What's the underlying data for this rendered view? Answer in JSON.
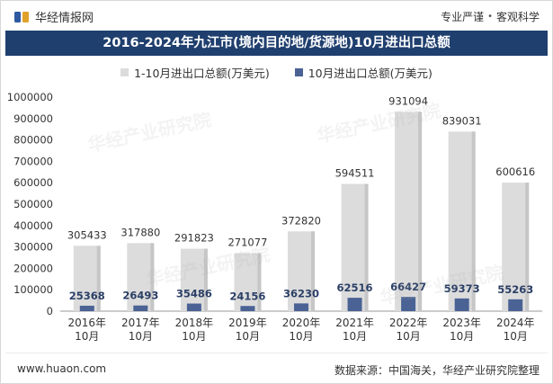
{
  "header": {
    "brand": "华经情报网",
    "slogan_left": "专业严谨",
    "slogan_sep": "•",
    "slogan_right": "客观科学",
    "title": "2016-2024年九江市(境内目的地/货源地)10月进出口总额"
  },
  "legend": {
    "series1_label": "1-10月进出口总额(万美元)",
    "series2_label": "10月进出口总额(万美元)"
  },
  "watermark": "华经产业研究院",
  "footer": {
    "site": "www.huaon.com",
    "source": "数据来源：中国海关，华经产业研究院整理"
  },
  "colors": {
    "banner": "#1f3f6e",
    "series1": "#dcdcdc",
    "series1_edge": "#c6c6c6",
    "series2": "#4a6294"
  },
  "chart_data": {
    "type": "bar",
    "categories": [
      [
        "2016年",
        "10月"
      ],
      [
        "2017年",
        "10月"
      ],
      [
        "2018年",
        "10月"
      ],
      [
        "2019年",
        "10月"
      ],
      [
        "2020年",
        "10月"
      ],
      [
        "2021年",
        "10月"
      ],
      [
        "2022年",
        "10月"
      ],
      [
        "2023年",
        "10月"
      ],
      [
        "2024年",
        "10月"
      ]
    ],
    "series": [
      {
        "name": "1-10月进出口总额(万美元)",
        "values": [
          305433,
          317880,
          291823,
          271077,
          372820,
          594511,
          931094,
          839031,
          600616
        ]
      },
      {
        "name": "10月进出口总额(万美元)",
        "values": [
          25368,
          26493,
          35486,
          24156,
          36230,
          62516,
          66427,
          59373,
          55263
        ]
      }
    ],
    "ylim": [
      0,
      1000000
    ],
    "yticks": [
      "0",
      "100000",
      "200000",
      "300000",
      "400000",
      "500000",
      "600000",
      "700000",
      "800000",
      "900000",
      "1000000"
    ],
    "grid": false,
    "legend_position": "top-center",
    "overlap": true
  }
}
